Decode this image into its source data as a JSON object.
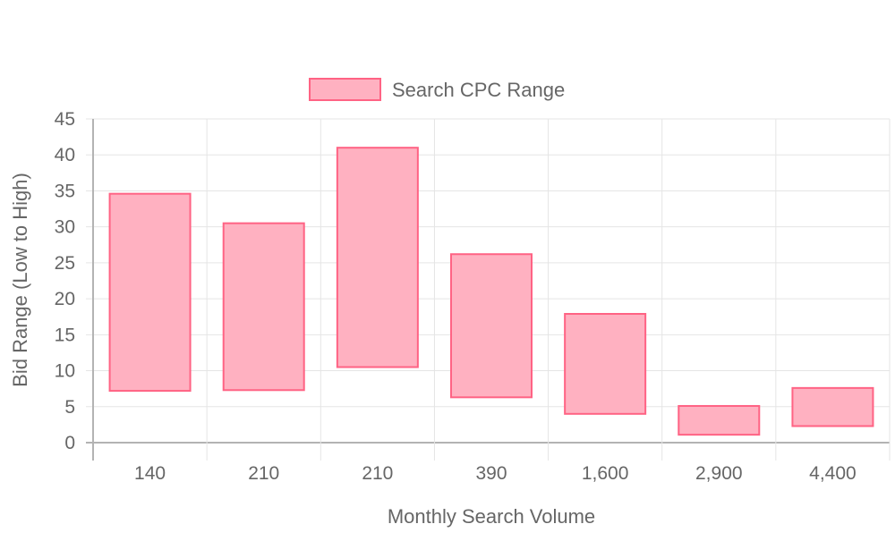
{
  "chart_data": {
    "type": "bar",
    "subtype": "floating-range",
    "title": "",
    "xlabel": "Monthly Search Volume",
    "ylabel": "Bid Range (Low to High)",
    "categories": [
      "140",
      "210",
      "210",
      "390",
      "1,600",
      "2,900",
      "4,400"
    ],
    "series": [
      {
        "name": "Search CPC Range",
        "low": [
          7.2,
          7.3,
          10.5,
          6.3,
          4.0,
          1.1,
          2.3
        ],
        "high": [
          34.6,
          30.5,
          41.0,
          26.2,
          17.9,
          5.1,
          7.6
        ]
      }
    ],
    "ylim": [
      0,
      45
    ],
    "yticks": [
      "0",
      "5",
      "10",
      "15",
      "20",
      "25",
      "30",
      "35",
      "40",
      "45"
    ],
    "grid": true,
    "legend_position": "top-center",
    "colors": {
      "bar_fill": "#ffb1c1",
      "bar_stroke": "#ff6384",
      "grid": "#e5e5e5",
      "axis": "#b3b3b3",
      "text": "#666666"
    }
  }
}
